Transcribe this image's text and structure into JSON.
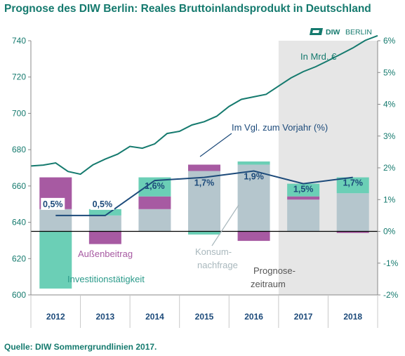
{
  "title": "Prognose des DIW Berlin: Reales Bruttoinlandsprodukt in Deutschland",
  "source": "Quelle: DIW Sommergrundlinien 2017.",
  "logo": {
    "brand": "DIW",
    "city": "BERLIN"
  },
  "colors": {
    "title": "#157a6e",
    "line_level": "#157a6e",
    "line_growth": "#1c4a7a",
    "konsum": "#b5c6cd",
    "aussen": "#a75aa2",
    "invest": "#6bcfb6",
    "forecast_bg": "#e6e6e6"
  },
  "annotations": {
    "level_unit": "In Mrd. €",
    "growth_label": "Im Vgl. zum Vorjahr (%)",
    "konsum": [
      "Konsum-",
      "nachfrage"
    ],
    "aussen": "Außenbeitrag",
    "invest": "Investitionstätigkeit",
    "forecast": [
      "Prognose-",
      "zeitraum"
    ]
  },
  "chart_data": {
    "type": "bar",
    "categories": [
      "2012",
      "2013",
      "2014",
      "2015",
      "2016",
      "2017",
      "2018"
    ],
    "forecast_categories": [
      "2017",
      "2018"
    ],
    "left_axis": {
      "ylim": [
        600,
        740
      ],
      "ticks": [
        "600",
        "620",
        "640",
        "660",
        "680",
        "700",
        "720",
        "740"
      ]
    },
    "right_axis": {
      "ylim": [
        -2,
        6
      ],
      "ticks": [
        "-2%",
        "-1%",
        "0%",
        "1%",
        "2%",
        "3%",
        "4%",
        "5%",
        "6%"
      ]
    },
    "bars": [
      {
        "year": "2012",
        "konsum": 0.7,
        "aussen": 1.0,
        "invest": -1.8
      },
      {
        "year": "2013",
        "konsum": 0.5,
        "aussen": -0.4,
        "invest": 0.2
      },
      {
        "year": "2014",
        "konsum": 0.7,
        "aussen": 0.4,
        "invest": 0.6
      },
      {
        "year": "2015",
        "konsum": 1.9,
        "aussen": 0.2,
        "invest": -0.1
      },
      {
        "year": "2016",
        "konsum": 2.1,
        "aussen": -0.3,
        "invest": 0.1
      },
      {
        "year": "2017",
        "konsum": 1.0,
        "aussen": 0.1,
        "invest": 0.4
      },
      {
        "year": "2018",
        "konsum": 1.2,
        "aussen": -0.05,
        "invest": 0.5
      }
    ],
    "growth_series": {
      "values": [
        0.5,
        0.5,
        1.6,
        1.7,
        1.9,
        1.5,
        1.7
      ],
      "labels": [
        "0,5%",
        "0,5%",
        "1,6%",
        "1,7%",
        "1,9%",
        "1,5%",
        "1,7%"
      ]
    },
    "level_series": {
      "x": [
        2011.5,
        2011.75,
        2012.0,
        2012.25,
        2012.5,
        2012.75,
        2013.0,
        2013.25,
        2013.5,
        2013.75,
        2014.0,
        2014.25,
        2014.5,
        2014.75,
        2015.0,
        2015.25,
        2015.5,
        2015.75,
        2016.0,
        2016.25,
        2016.5,
        2016.75,
        2017.0,
        2017.25,
        2017.5,
        2017.75,
        2018.0,
        2018.25,
        2018.5
      ],
      "values": [
        671,
        671.5,
        672.7,
        668,
        666.5,
        671.6,
        674.8,
        677.5,
        681.8,
        680.8,
        683.2,
        688.9,
        690.1,
        693.6,
        695.4,
        698.4,
        703.8,
        707.7,
        709.1,
        710.5,
        715,
        719.5,
        723,
        725.7,
        729,
        732.5,
        736,
        740.2,
        742.8
      ]
    }
  }
}
